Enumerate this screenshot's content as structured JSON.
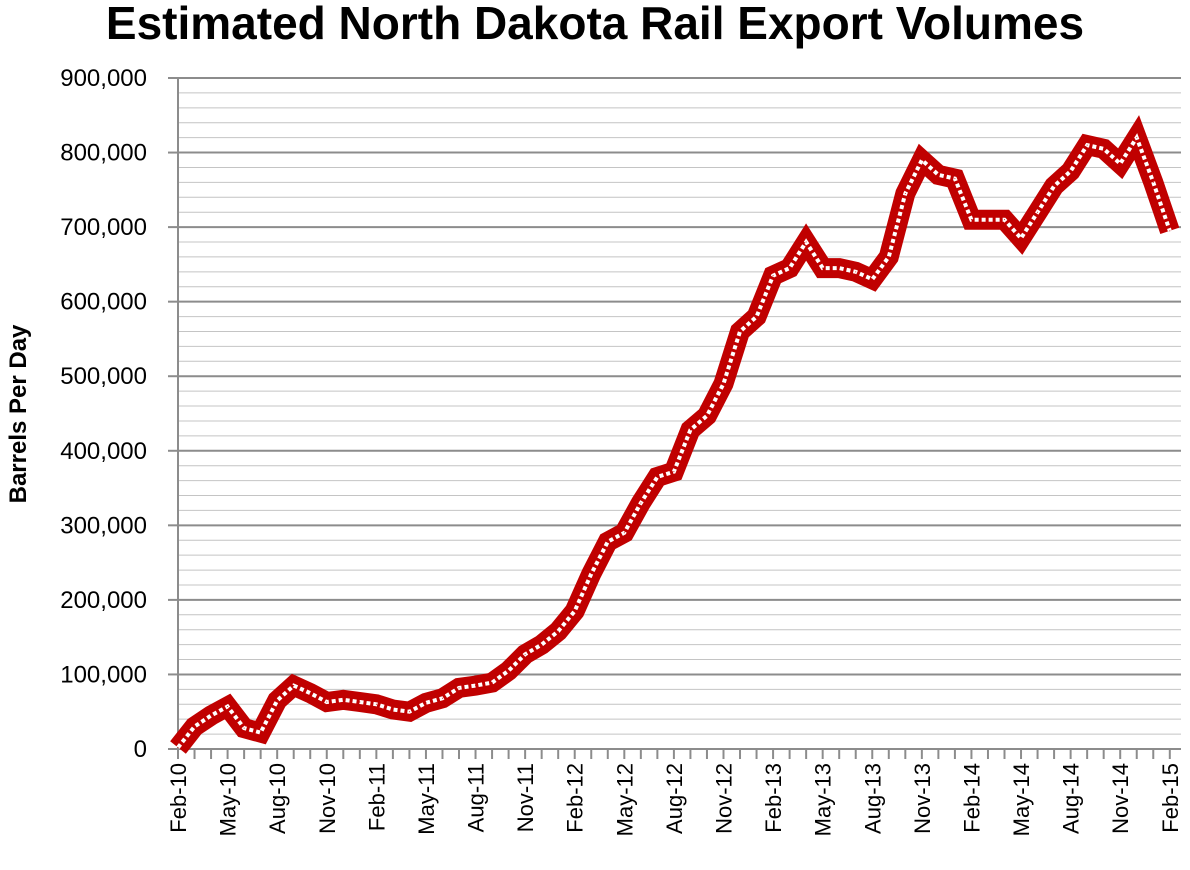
{
  "chart_data": {
    "type": "line",
    "title": "Estimated North Dakota Rail Export Volumes",
    "xlabel": "",
    "ylabel": "Barrels Per Day",
    "ylim": [
      0,
      900000
    ],
    "y_tick_labels": [
      "0",
      "100,000",
      "200,000",
      "300,000",
      "400,000",
      "500,000",
      "600,000",
      "700,000",
      "800,000",
      "900,000"
    ],
    "y_tick_values": [
      0,
      100000,
      200000,
      300000,
      400000,
      500000,
      600000,
      700000,
      800000,
      900000
    ],
    "x_tick_labels": [
      "Feb-10",
      "May-10",
      "Aug-10",
      "Nov-10",
      "Feb-11",
      "May-11",
      "Aug-11",
      "Nov-11",
      "Feb-12",
      "May-12",
      "Aug-12",
      "Nov-12",
      "Feb-13",
      "May-13",
      "Aug-13",
      "Nov-13",
      "Feb-14",
      "May-14",
      "Aug-14",
      "Nov-14",
      "Feb-15"
    ],
    "grid": true,
    "minor_grid": true,
    "legend": "none",
    "line_color": "#C00000",
    "series": [
      {
        "x": [
          "Feb-10",
          "Mar-10",
          "Apr-10",
          "May-10",
          "Jun-10",
          "Jul-10",
          "Aug-10",
          "Sep-10",
          "Oct-10",
          "Nov-10",
          "Dec-10",
          "Jan-11",
          "Feb-11",
          "Mar-11",
          "Apr-11",
          "May-11",
          "Jun-11",
          "Jul-11",
          "Aug-11",
          "Sep-11",
          "Oct-11",
          "Nov-11",
          "Dec-11",
          "Jan-12",
          "Feb-12",
          "Mar-12",
          "Apr-12",
          "May-12",
          "Jun-12",
          "Jul-12",
          "Aug-12",
          "Sep-12",
          "Oct-12",
          "Nov-12",
          "Dec-12",
          "Jan-13",
          "Feb-13",
          "Mar-13",
          "Apr-13",
          "May-13",
          "Jun-13",
          "Jul-13",
          "Aug-13",
          "Sep-13",
          "Oct-13",
          "Nov-13",
          "Dec-13",
          "Jan-14",
          "Feb-14",
          "Mar-14",
          "Apr-14",
          "May-14",
          "Jun-14",
          "Jul-14",
          "Aug-14",
          "Sep-14",
          "Oct-14",
          "Nov-14",
          "Dec-14",
          "Jan-15",
          "Feb-15"
        ],
        "values": [
          2000,
          30000,
          45000,
          57000,
          28000,
          22000,
          65000,
          85000,
          75000,
          63000,
          66000,
          63000,
          60000,
          53000,
          50000,
          62000,
          68000,
          82000,
          85000,
          89000,
          105000,
          127000,
          140000,
          158000,
          185000,
          235000,
          278000,
          290000,
          330000,
          365000,
          372000,
          428000,
          447000,
          490000,
          560000,
          580000,
          635000,
          645000,
          680000,
          645000,
          645000,
          640000,
          630000,
          660000,
          745000,
          790000,
          770000,
          765000,
          710000,
          710000,
          710000,
          685000,
          720000,
          755000,
          775000,
          810000,
          805000,
          785000,
          820000,
          760000,
          695000
        ]
      }
    ]
  }
}
